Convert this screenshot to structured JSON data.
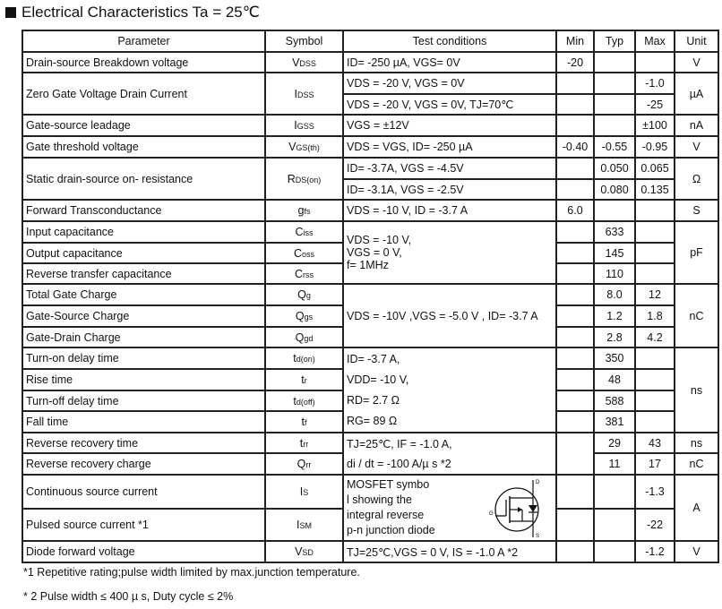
{
  "title": "Electrical Characteristics Ta = 25℃",
  "headers": {
    "parameter": "Parameter",
    "symbol": "Symbol",
    "test": "Test conditions",
    "min": "Min",
    "typ": "Typ",
    "max": "Max",
    "unit": "Unit"
  },
  "rows": {
    "vdss": {
      "param": "Drain-source Breakdown voltage",
      "sym": "V",
      "sub": "DSS",
      "cond": "ID= -250 µA, VGS= 0V",
      "min": "-20",
      "unit": "V"
    },
    "idss": {
      "param": "Zero Gate Voltage Drain Current",
      "sym": "I",
      "sub": "DSS",
      "cond": "VDS = -20 V, VGS = 0V",
      "max": "-1.0",
      "cond2": "VDS = -20 V, VGS = 0V, TJ=70℃",
      "max2": "-25",
      "unit": "µA"
    },
    "igss": {
      "param": "Gate-source  leadage",
      "sym": "I",
      "sub": "GSS",
      "cond": "VGS = ±12V",
      "max": "±100",
      "unit": "nA"
    },
    "vgsth": {
      "param": "Gate threshold voltage",
      "sym": "V",
      "sub": "GS(th)",
      "cond": "VDS = VGS, ID= -250 µA",
      "min": "-0.40",
      "typ": "-0.55",
      "max": "-0.95",
      "unit": "V"
    },
    "rds": {
      "param": "Static drain-source on- resistance",
      "sym": "R",
      "sub": "DS(on)",
      "cond": "ID= -3.7A, VGS = -4.5V",
      "typ": "0.050",
      "max": "0.065",
      "cond2": "ID= -3.1A, VGS = -2.5V",
      "typ2": "0.080",
      "max2": "0.135",
      "unit": "Ω"
    },
    "gfs": {
      "param": "Forward Transconductance",
      "sym": "g",
      "sub": "fs",
      "cond": "VDS = -10 V, ID = -3.7 A",
      "min": "6.0",
      "unit": "S"
    },
    "ciss": {
      "param": "Input capacitance",
      "sym": "C",
      "sub": "iss",
      "cond": "VDS = -10 V,",
      "typ": "633"
    },
    "coss": {
      "param": "Output capacitance",
      "sym": "C",
      "sub": "oss",
      "cond": "VGS = 0 V,",
      "typ": "145"
    },
    "crss": {
      "param": "Reverse transfer capacitance",
      "sym": "C",
      "sub": "rss",
      "cond": "f= 1MHz",
      "typ": "110",
      "unit": "pF"
    },
    "qg": {
      "param": "Total Gate Charge",
      "sym": "Q",
      "sub": "g",
      "typ": "8.0",
      "max": "12"
    },
    "qgs": {
      "param": "Gate-Source Charge",
      "sym": "Q",
      "sub": "gs",
      "cond": "VDS = -10V ,VGS = -5.0 V , ID= -3.7 A",
      "typ": "1.2",
      "max": "1.8",
      "unit": "nC"
    },
    "qgd": {
      "param": "Gate-Drain Charge",
      "sym": "Q",
      "sub": "gd",
      "typ": "2.8",
      "max": "4.2"
    },
    "tdon": {
      "param": "Turn-on delay time",
      "sym": "t",
      "sub": "d(on)",
      "cond": "ID= -3.7 A,",
      "typ": "350"
    },
    "tr": {
      "param": "Rise time",
      "sym": "t",
      "sub": "r",
      "cond": "VDD= -10 V,",
      "typ": "48",
      "unit": "ns"
    },
    "tdoff": {
      "param": "Turn-off delay time",
      "sym": "t",
      "sub": "d(off)",
      "cond": "RD= 2.7 Ω",
      "typ": "588"
    },
    "tf": {
      "param": "Fall time",
      "sym": "t",
      "sub": "f",
      "cond": "RG= 89 Ω",
      "typ": "381"
    },
    "trr": {
      "param": "Reverse recovery time",
      "sym": "t",
      "sub": "rr",
      "cond": "TJ=25℃, IF = -1.0 A,",
      "typ": "29",
      "max": "43",
      "unit": "ns"
    },
    "qrr": {
      "param": "Reverse recovery charge",
      "sym": "Q",
      "sub": "rr",
      "cond": "di / dt = -100 A/µ s   *2",
      "typ": "11",
      "max": "17",
      "unit": "nC"
    },
    "is": {
      "param": "Continuous source current",
      "sym": "I",
      "sub": "S",
      "max": "-1.3",
      "unit": "A"
    },
    "ism": {
      "param": "Pulsed source current *1",
      "sym": "I",
      "sub": "SM",
      "max": "-22"
    },
    "vsd": {
      "param": "Diode forward voltage",
      "sym": "V",
      "sub": "SD",
      "cond": "TJ=25℃,VGS = 0 V, IS = -1.0 A  *2",
      "max": "-1.2",
      "unit": "V"
    }
  },
  "mosfet_text": [
    "MOSFET symbo",
    "l showing the",
    "integral reverse",
    "p-n junction diode"
  ],
  "mosfet_labels": {
    "d": "D",
    "g": "G",
    "s": "S"
  },
  "footnotes": [
    "*1 Repetitive rating;pulse width limited by max.junction temperature.",
    "* 2 Pulse width ≤ 400 µ s, Duty cycle ≤ 2%"
  ]
}
